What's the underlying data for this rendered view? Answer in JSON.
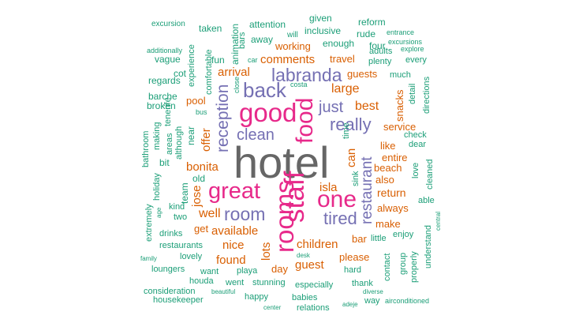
{
  "colors": {
    "grey": "#666666",
    "pink": "#e7298a",
    "purple": "#7570b3",
    "orange": "#d95f02",
    "teal": "#1b9e77"
  },
  "words": [
    {
      "text": "hotel",
      "color": "grey"
    },
    {
      "text": "staff",
      "color": "pink"
    },
    {
      "text": "rooms",
      "color": "pink"
    },
    {
      "text": "good",
      "color": "pink"
    },
    {
      "text": "great",
      "color": "pink"
    },
    {
      "text": "food",
      "color": "pink"
    },
    {
      "text": "one",
      "color": "pink"
    },
    {
      "text": "back",
      "color": "purple"
    },
    {
      "text": "labranda",
      "color": "purple"
    },
    {
      "text": "really",
      "color": "purple"
    },
    {
      "text": "room",
      "color": "purple"
    },
    {
      "text": "reception",
      "color": "purple"
    },
    {
      "text": "restaurant",
      "color": "purple"
    },
    {
      "text": "tired",
      "color": "purple"
    },
    {
      "text": "clean",
      "color": "purple"
    },
    {
      "text": "just",
      "color": "purple"
    },
    {
      "text": "well",
      "color": "orange"
    },
    {
      "text": "comments",
      "color": "orange"
    },
    {
      "text": "arrival",
      "color": "orange"
    },
    {
      "text": "large",
      "color": "orange"
    },
    {
      "text": "best",
      "color": "orange"
    },
    {
      "text": "bonita",
      "color": "orange"
    },
    {
      "text": "available",
      "color": "orange"
    },
    {
      "text": "nice",
      "color": "orange"
    },
    {
      "text": "children",
      "color": "orange"
    },
    {
      "text": "found",
      "color": "orange"
    },
    {
      "text": "guest",
      "color": "orange"
    },
    {
      "text": "isla",
      "color": "orange"
    },
    {
      "text": "return",
      "color": "orange"
    },
    {
      "text": "working",
      "color": "orange"
    },
    {
      "text": "lots",
      "color": "orange"
    },
    {
      "text": "can",
      "color": "orange"
    },
    {
      "text": "jose",
      "color": "orange"
    },
    {
      "text": "offer",
      "color": "orange"
    },
    {
      "text": "travel",
      "color": "orange"
    },
    {
      "text": "guests",
      "color": "orange"
    },
    {
      "text": "pool",
      "color": "orange"
    },
    {
      "text": "snacks",
      "color": "orange"
    },
    {
      "text": "service",
      "color": "orange"
    },
    {
      "text": "like",
      "color": "orange"
    },
    {
      "text": "entire",
      "color": "orange"
    },
    {
      "text": "beach",
      "color": "orange"
    },
    {
      "text": "also",
      "color": "orange"
    },
    {
      "text": "always",
      "color": "orange"
    },
    {
      "text": "make",
      "color": "orange"
    },
    {
      "text": "bar",
      "color": "orange"
    },
    {
      "text": "please",
      "color": "orange"
    },
    {
      "text": "day",
      "color": "orange"
    },
    {
      "text": "get",
      "color": "orange"
    },
    {
      "text": "given",
      "color": "teal"
    },
    {
      "text": "reform",
      "color": "teal"
    },
    {
      "text": "excursion",
      "color": "teal"
    },
    {
      "text": "attention",
      "color": "teal"
    },
    {
      "text": "will",
      "color": "teal"
    },
    {
      "text": "inclusive",
      "color": "teal"
    },
    {
      "text": "rude",
      "color": "teal"
    },
    {
      "text": "entrance",
      "color": "teal"
    },
    {
      "text": "taken",
      "color": "teal"
    },
    {
      "text": "bars",
      "color": "teal"
    },
    {
      "text": "away",
      "color": "teal"
    },
    {
      "text": "animation",
      "color": "teal"
    },
    {
      "text": "four",
      "color": "teal"
    },
    {
      "text": "excursions",
      "color": "teal"
    },
    {
      "text": "additionally",
      "color": "teal"
    },
    {
      "text": "enough",
      "color": "teal"
    },
    {
      "text": "adults",
      "color": "teal"
    },
    {
      "text": "explore",
      "color": "teal"
    },
    {
      "text": "vague",
      "color": "teal"
    },
    {
      "text": "experience",
      "color": "teal"
    },
    {
      "text": "fun",
      "color": "teal"
    },
    {
      "text": "car",
      "color": "teal"
    },
    {
      "text": "plenty",
      "color": "teal"
    },
    {
      "text": "every",
      "color": "teal"
    },
    {
      "text": "cot",
      "color": "teal"
    },
    {
      "text": "comfortable",
      "color": "teal"
    },
    {
      "text": "much",
      "color": "teal"
    },
    {
      "text": "regards",
      "color": "teal"
    },
    {
      "text": "close",
      "color": "teal"
    },
    {
      "text": "costa",
      "color": "teal"
    },
    {
      "text": "barche",
      "color": "teal"
    },
    {
      "text": "broken",
      "color": "teal"
    },
    {
      "text": "tenerife",
      "color": "teal"
    },
    {
      "text": "bus",
      "color": "teal"
    },
    {
      "text": "detail",
      "color": "teal"
    },
    {
      "text": "directions",
      "color": "teal"
    },
    {
      "text": "bathroom",
      "color": "teal"
    },
    {
      "text": "making",
      "color": "teal"
    },
    {
      "text": "areas",
      "color": "teal"
    },
    {
      "text": "although",
      "color": "teal"
    },
    {
      "text": "near",
      "color": "teal"
    },
    {
      "text": "time",
      "color": "teal"
    },
    {
      "text": "check",
      "color": "teal"
    },
    {
      "text": "dear",
      "color": "teal"
    },
    {
      "text": "bit",
      "color": "teal"
    },
    {
      "text": "love",
      "color": "teal"
    },
    {
      "text": "cleaned",
      "color": "teal"
    },
    {
      "text": "holiday",
      "color": "teal"
    },
    {
      "text": "old",
      "color": "teal"
    },
    {
      "text": "team",
      "color": "teal"
    },
    {
      "text": "sink",
      "color": "teal"
    },
    {
      "text": "kind",
      "color": "teal"
    },
    {
      "text": "extremely",
      "color": "teal"
    },
    {
      "text": "age",
      "color": "teal"
    },
    {
      "text": "two",
      "color": "teal"
    },
    {
      "text": "able",
      "color": "teal"
    },
    {
      "text": "central",
      "color": "teal"
    },
    {
      "text": "drinks",
      "color": "teal"
    },
    {
      "text": "little",
      "color": "teal"
    },
    {
      "text": "enjoy",
      "color": "teal"
    },
    {
      "text": "understand",
      "color": "teal"
    },
    {
      "text": "restaurants",
      "color": "teal"
    },
    {
      "text": "contact",
      "color": "teal"
    },
    {
      "text": "group",
      "color": "teal"
    },
    {
      "text": "family",
      "color": "teal"
    },
    {
      "text": "lovely",
      "color": "teal"
    },
    {
      "text": "desk",
      "color": "teal"
    },
    {
      "text": "properly",
      "color": "teal"
    },
    {
      "text": "loungers",
      "color": "teal"
    },
    {
      "text": "want",
      "color": "teal"
    },
    {
      "text": "playa",
      "color": "teal"
    },
    {
      "text": "hard",
      "color": "teal"
    },
    {
      "text": "houda",
      "color": "teal"
    },
    {
      "text": "went",
      "color": "teal"
    },
    {
      "text": "stunning",
      "color": "teal"
    },
    {
      "text": "especially",
      "color": "teal"
    },
    {
      "text": "thank",
      "color": "teal"
    },
    {
      "text": "consideration",
      "color": "teal"
    },
    {
      "text": "beautiful",
      "color": "teal"
    },
    {
      "text": "diverse",
      "color": "teal"
    },
    {
      "text": "housekeeper",
      "color": "teal"
    },
    {
      "text": "happy",
      "color": "teal"
    },
    {
      "text": "babies",
      "color": "teal"
    },
    {
      "text": "way",
      "color": "teal"
    },
    {
      "text": "airconditioned",
      "color": "teal"
    },
    {
      "text": "center",
      "color": "teal"
    },
    {
      "text": "relations",
      "color": "teal"
    },
    {
      "text": "adeje",
      "color": "teal"
    }
  ]
}
